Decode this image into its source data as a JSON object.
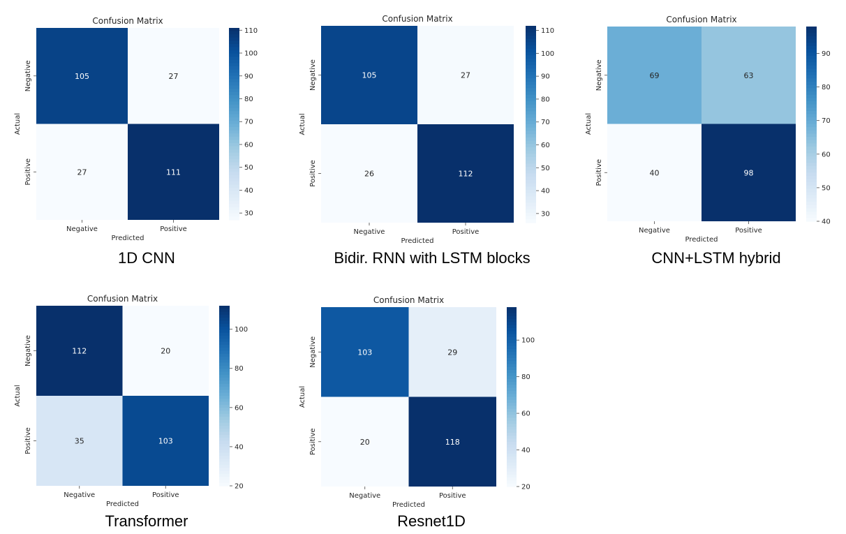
{
  "chart_data": [
    {
      "type": "heatmap",
      "title": "Confusion Matrix",
      "caption": "1D CNN",
      "xlabel": "Predicted",
      "ylabel": "Actual",
      "x_categories": [
        "Negative",
        "Positive"
      ],
      "y_categories": [
        "Negative",
        "Positive"
      ],
      "values": [
        [
          105,
          27
        ],
        [
          27,
          111
        ]
      ],
      "colorbar_ticks": [
        30,
        40,
        50,
        60,
        70,
        80,
        90,
        100,
        110
      ],
      "colorbar_range": [
        27,
        111
      ],
      "colormap": "Blues"
    },
    {
      "type": "heatmap",
      "title": "Confusion Matrix",
      "caption": "Bidir. RNN with LSTM blocks",
      "xlabel": "Predicted",
      "ylabel": "Actual",
      "x_categories": [
        "Negative",
        "Positive"
      ],
      "y_categories": [
        "Negative",
        "Positive"
      ],
      "values": [
        [
          105,
          27
        ],
        [
          26,
          112
        ]
      ],
      "colorbar_ticks": [
        30,
        40,
        50,
        60,
        70,
        80,
        90,
        100,
        110
      ],
      "colorbar_range": [
        26,
        112
      ],
      "colormap": "Blues"
    },
    {
      "type": "heatmap",
      "title": "Confusion Matrix",
      "caption": "CNN+LSTM hybrid",
      "xlabel": "Predicted",
      "ylabel": "Actual",
      "x_categories": [
        "Negative",
        "Positive"
      ],
      "y_categories": [
        "Negative",
        "Positive"
      ],
      "values": [
        [
          69,
          63
        ],
        [
          40,
          98
        ]
      ],
      "colorbar_ticks": [
        40,
        50,
        60,
        70,
        80,
        90
      ],
      "colorbar_range": [
        40,
        98
      ],
      "colormap": "Blues"
    },
    {
      "type": "heatmap",
      "title": "Confusion Matrix",
      "caption": "Transformer",
      "xlabel": "Predicted",
      "ylabel": "Actual",
      "x_categories": [
        "Negative",
        "Positive"
      ],
      "y_categories": [
        "Negative",
        "Positive"
      ],
      "values": [
        [
          112,
          20
        ],
        [
          35,
          103
        ]
      ],
      "colorbar_ticks": [
        20,
        40,
        60,
        80,
        100
      ],
      "colorbar_range": [
        20,
        112
      ],
      "colormap": "Blues"
    },
    {
      "type": "heatmap",
      "title": "Confusion Matrix",
      "caption": "Resnet1D",
      "xlabel": "Predicted",
      "ylabel": "Actual",
      "x_categories": [
        "Negative",
        "Positive"
      ],
      "y_categories": [
        "Negative",
        "Positive"
      ],
      "values": [
        [
          103,
          29
        ],
        [
          20,
          118
        ]
      ],
      "colorbar_ticks": [
        20,
        40,
        60,
        80,
        100
      ],
      "colorbar_range": [
        20,
        118
      ],
      "colormap": "Blues"
    }
  ]
}
